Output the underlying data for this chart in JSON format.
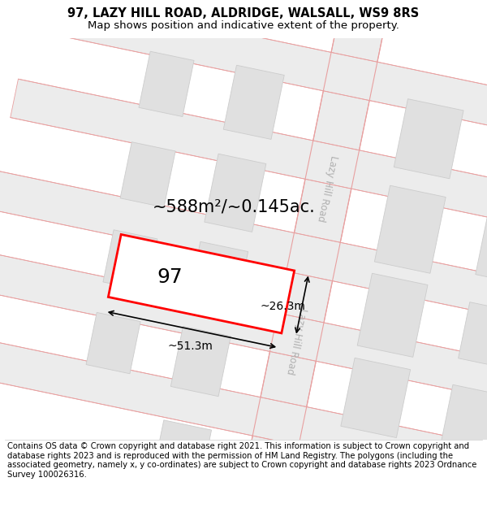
{
  "title": "97, LAZY HILL ROAD, ALDRIDGE, WALSALL, WS9 8RS",
  "subtitle": "Map shows position and indicative extent of the property.",
  "footer": "Contains OS data © Crown copyright and database right 2021. This information is subject to Crown copyright and database rights 2023 and is reproduced with the permission of HM Land Registry. The polygons (including the associated geometry, namely x, y co-ordinates) are subject to Crown copyright and database rights 2023 Ordnance Survey 100026316.",
  "area_text": "~588m²/~0.145ac.",
  "width_text": "~51.3m",
  "height_text": "~26.3m",
  "label_97": "97",
  "road_line_color": "#e8a0a0",
  "highlight_color": "#ff0000",
  "title_fontsize": 10.5,
  "subtitle_fontsize": 9.5,
  "footer_fontsize": 7.2,
  "road_text_color": "#b0b0b0",
  "map_bg": "#f0f0f0",
  "road_bg": "#ececec",
  "block_fill": "#e0e0e0",
  "block_edge": "#cccccc"
}
